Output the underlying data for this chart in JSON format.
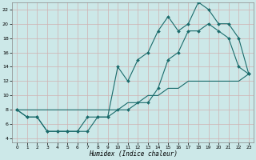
{
  "xlabel": "Humidex (Indice chaleur)",
  "bg_color": "#cce8e8",
  "grid_color": "#b0d0d0",
  "line_color": "#1a6b6b",
  "xlim": [
    -0.5,
    23.5
  ],
  "ylim": [
    3.5,
    23
  ],
  "xticks": [
    0,
    1,
    2,
    3,
    4,
    5,
    6,
    7,
    8,
    9,
    10,
    11,
    12,
    13,
    14,
    15,
    16,
    17,
    18,
    19,
    20,
    21,
    22,
    23
  ],
  "yticks": [
    4,
    6,
    8,
    10,
    12,
    14,
    16,
    18,
    20,
    22
  ],
  "line1_x": [
    0,
    1,
    2,
    3,
    4,
    5,
    6,
    7,
    8,
    9,
    10,
    11,
    12,
    13,
    14,
    15,
    16,
    17,
    18,
    19,
    20,
    21,
    22,
    23
  ],
  "line1_y": [
    8,
    7,
    7,
    5,
    5,
    5,
    5,
    5,
    7,
    7,
    8,
    8,
    9,
    9,
    11,
    15,
    16,
    19,
    19,
    20,
    19,
    18,
    14,
    13
  ],
  "line2_x": [
    0,
    1,
    2,
    3,
    4,
    5,
    6,
    7,
    8,
    9,
    10,
    11,
    12,
    13,
    14,
    15,
    16,
    17,
    18,
    19,
    20,
    21,
    22,
    23
  ],
  "line2_y": [
    8,
    7,
    7,
    5,
    5,
    5,
    5,
    7,
    7,
    7,
    14,
    12,
    15,
    16,
    19,
    21,
    19,
    20,
    23,
    22,
    20,
    20,
    18,
    13
  ],
  "line3_x": [
    0,
    1,
    2,
    3,
    4,
    5,
    6,
    7,
    8,
    9,
    10,
    11,
    12,
    13,
    14,
    15,
    16,
    17,
    18,
    19,
    20,
    21,
    22,
    23
  ],
  "line3_y": [
    8,
    8,
    8,
    8,
    8,
    8,
    8,
    8,
    8,
    8,
    8,
    9,
    9,
    10,
    10,
    11,
    11,
    12,
    12,
    12,
    12,
    12,
    12,
    13
  ]
}
